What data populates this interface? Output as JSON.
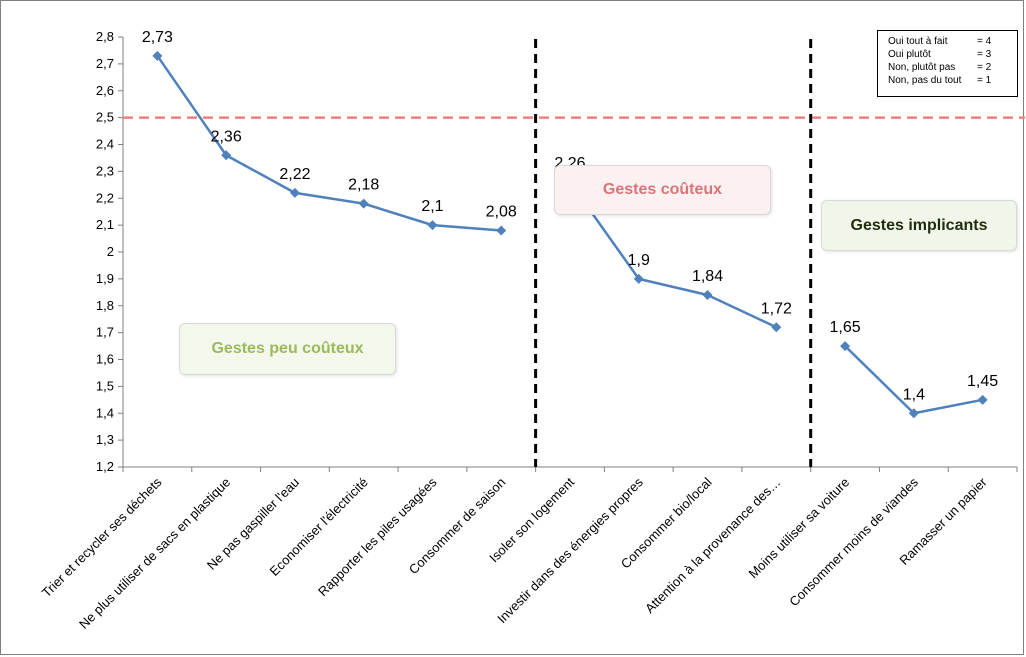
{
  "chart_data": {
    "type": "line",
    "categories": [
      "Trier et recycler ses déchets",
      "Ne plus utiliser de sacs en plastique",
      "Ne pas gaspiller l'eau",
      "Economiser l'électricité",
      "Rapporter les piles usagées",
      "Consommer de saison",
      "Isoler son logement",
      "Investir dans des énergies propres",
      "Consommer bio/local",
      "Attention à la provenance des…",
      "Moins utiliser sa voiture",
      "Consommer moins de viandes",
      "Ramasser un papier"
    ],
    "values": [
      2.73,
      2.36,
      2.22,
      2.18,
      2.1,
      2.08,
      2.26,
      1.9,
      1.84,
      1.72,
      1.65,
      1.4,
      1.45
    ],
    "data_labels": [
      "2,73",
      "2,36",
      "2,22",
      "2,18",
      "2,1",
      "2,08",
      "2,26",
      "1,9",
      "1,84",
      "1,72",
      "1,65",
      "1,4",
      "1,45"
    ],
    "segments": [
      [
        0,
        5
      ],
      [
        6,
        9
      ],
      [
        10,
        12
      ]
    ],
    "ylim": [
      1.2,
      2.8
    ],
    "yticks": [
      "1,2",
      "1,3",
      "1,4",
      "1,5",
      "1,6",
      "1,7",
      "1,8",
      "1,9",
      "2",
      "2,1",
      "2,2",
      "2,3",
      "2,4",
      "2,5",
      "2,6",
      "2,7",
      "2,8"
    ],
    "reference_line": 2.5,
    "separators_after_index": [
      5,
      9
    ],
    "groups": [
      {
        "label": "Gestes peu coûteux",
        "color": "#9bbb59",
        "fill": "#f3f7ec"
      },
      {
        "label": "Gestes coûteux",
        "color": "#d9757a",
        "fill": "#fbf1f1"
      },
      {
        "label": "Gestes implicants",
        "color": "#1f2d0f",
        "fill": "#f2f5ea"
      }
    ],
    "legend": [
      {
        "label": "Oui tout à fait",
        "value": "= 4"
      },
      {
        "label": "Oui plutôt",
        "value": "= 3"
      },
      {
        "label": "Non, plutôt pas",
        "value": "= 2"
      },
      {
        "label": "Non, pas du tout",
        "value": "= 1"
      }
    ],
    "legend_position": "top-right",
    "line_color": "#4f81bd",
    "reference_color": "#f08080",
    "separator_color": "#000000",
    "grid": false
  }
}
